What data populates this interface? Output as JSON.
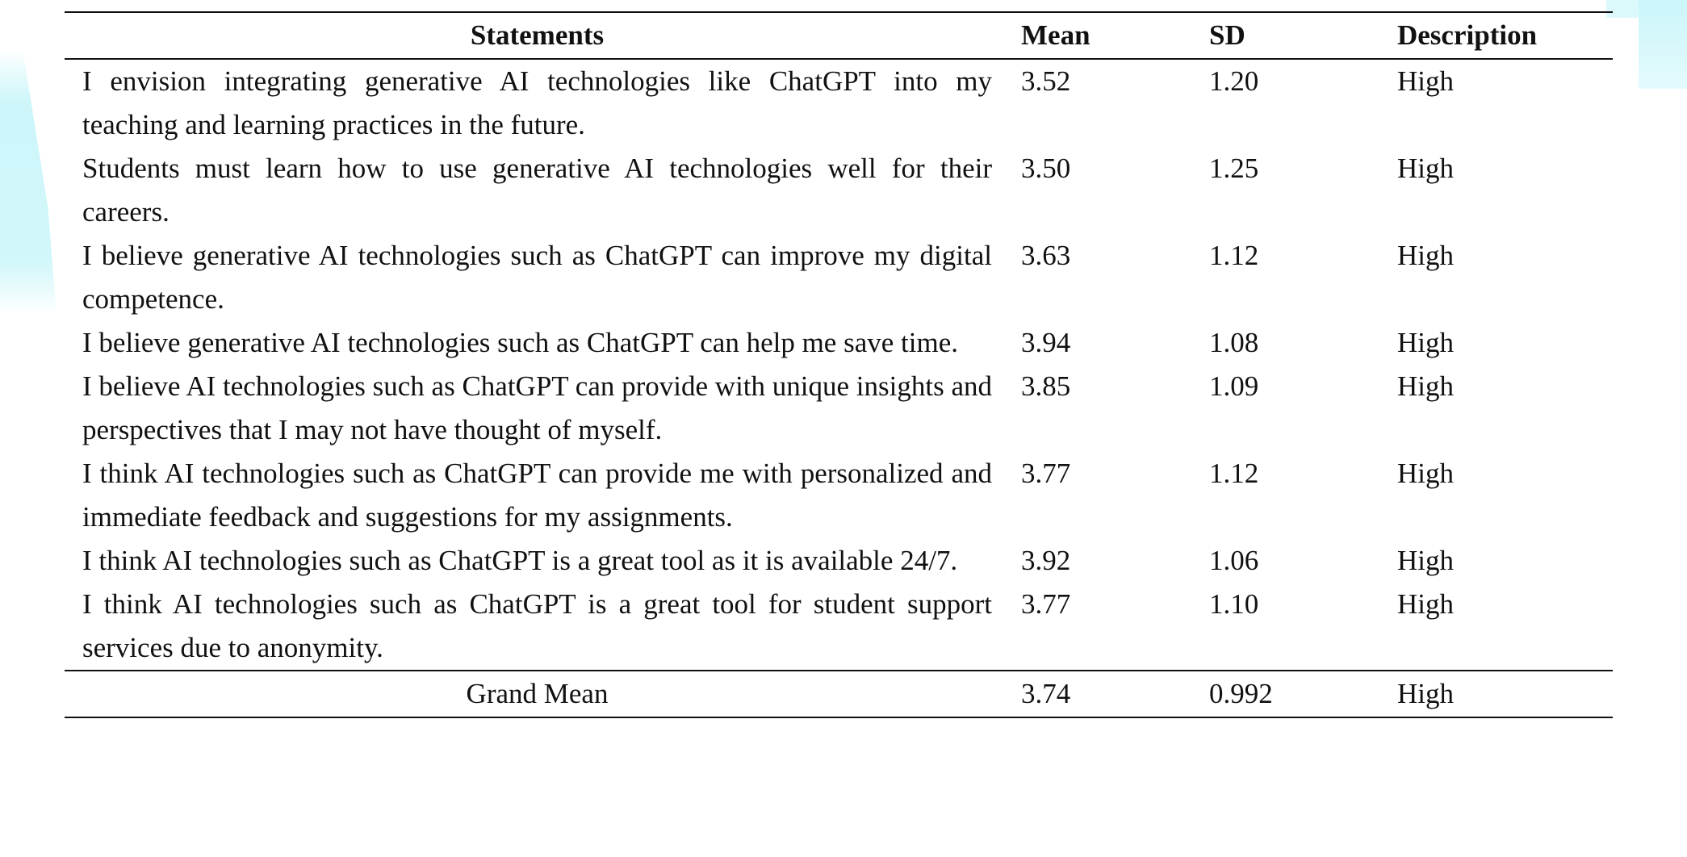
{
  "table": {
    "headers": {
      "statement": "Statements",
      "mean": "Mean",
      "sd": "SD",
      "description": "Description"
    },
    "rows": [
      {
        "statement": "I envision integrating generative AI technologies like ChatGPT into my teaching and learning practices in the future.",
        "mean": "3.52",
        "sd": "1.20",
        "description": "High"
      },
      {
        "statement": "Students must learn how to use generative AI technologies well for their careers.",
        "mean": "3.50",
        "sd": "1.25",
        "description": "High"
      },
      {
        "statement": "I believe generative AI technologies such as ChatGPT can improve my digital competence.",
        "mean": "3.63",
        "sd": "1.12",
        "description": "High"
      },
      {
        "statement": "I believe generative AI technologies such as ChatGPT can help me save time.",
        "mean": "3.94",
        "sd": "1.08",
        "description": "High"
      },
      {
        "statement": "I believe AI technologies such as ChatGPT can provide with unique insights and perspectives that I may not have thought of myself.",
        "mean": "3.85",
        "sd": "1.09",
        "description": "High"
      },
      {
        "statement": "I think AI technologies such as ChatGPT can provide me with personalized and immediate feedback and suggestions for my assignments.",
        "mean": "3.77",
        "sd": "1.12",
        "description": "High"
      },
      {
        "statement": "I think AI technologies such as ChatGPT is a great tool as it is available 24/7.",
        "mean": "3.92",
        "sd": "1.06",
        "description": "High"
      },
      {
        "statement": "I think AI technologies such as ChatGPT is a great tool for student support services due to anonymity.",
        "mean": "3.77",
        "sd": "1.10",
        "description": "High"
      }
    ],
    "grand": {
      "label": "Grand Mean",
      "mean": "3.74",
      "sd": "0.992",
      "description": "High"
    }
  }
}
